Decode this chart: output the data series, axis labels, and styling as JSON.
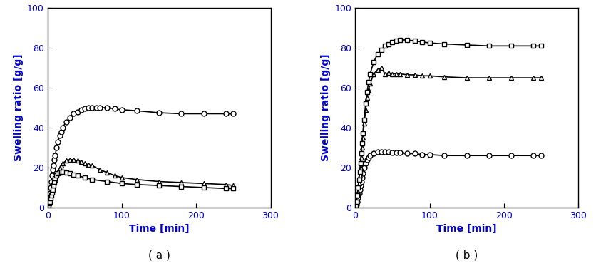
{
  "panel_a": {
    "circle": {
      "time": [
        1,
        2,
        3,
        4,
        5,
        6,
        7,
        8,
        9,
        10,
        12,
        14,
        16,
        18,
        20,
        25,
        30,
        35,
        40,
        45,
        50,
        55,
        60,
        65,
        70,
        80,
        90,
        100,
        120,
        150,
        180,
        210,
        240,
        250
      ],
      "values": [
        2,
        4,
        7,
        10,
        13,
        16,
        19,
        21,
        24,
        26,
        30,
        33,
        36,
        38,
        40,
        43,
        45,
        47,
        48,
        49,
        49.5,
        50,
        50,
        50,
        50,
        50,
        49.5,
        49,
        48.5,
        47.5,
        47,
        47,
        47,
        47
      ]
    },
    "triangle": {
      "time": [
        1,
        2,
        3,
        4,
        5,
        6,
        7,
        8,
        9,
        10,
        12,
        14,
        16,
        18,
        20,
        25,
        30,
        35,
        40,
        45,
        50,
        55,
        60,
        70,
        80,
        90,
        100,
        120,
        150,
        180,
        210,
        240,
        250
      ],
      "values": [
        1,
        2,
        3.5,
        5,
        6.5,
        8,
        9.5,
        11,
        12.5,
        14,
        16,
        18,
        19.5,
        21,
        22,
        23.5,
        24,
        24,
        23.5,
        23,
        22,
        21.5,
        21,
        19,
        17.5,
        16,
        15,
        14,
        13,
        12.5,
        12,
        11.5,
        11
      ]
    },
    "square": {
      "time": [
        1,
        2,
        3,
        4,
        5,
        6,
        7,
        8,
        9,
        10,
        12,
        14,
        16,
        18,
        20,
        25,
        30,
        35,
        40,
        50,
        60,
        80,
        100,
        120,
        150,
        180,
        210,
        240,
        250
      ],
      "values": [
        1,
        2,
        3,
        4.5,
        6,
        7.5,
        9,
        11,
        13,
        14.5,
        16,
        17,
        17.5,
        18,
        18,
        17.5,
        17,
        16.5,
        16,
        15,
        14,
        13,
        12,
        11.5,
        11,
        10.5,
        10,
        9.5,
        9.5
      ]
    }
  },
  "panel_b": {
    "square": {
      "time": [
        1,
        2,
        3,
        4,
        5,
        6,
        7,
        8,
        9,
        10,
        12,
        14,
        16,
        18,
        20,
        25,
        30,
        35,
        40,
        45,
        50,
        55,
        60,
        70,
        80,
        90,
        100,
        120,
        150,
        180,
        210,
        240,
        250
      ],
      "values": [
        1,
        3,
        6,
        10,
        14,
        18,
        22,
        27,
        32,
        37,
        44,
        52,
        58,
        63,
        67,
        73,
        77,
        79,
        81,
        82,
        83,
        83.5,
        84,
        84,
        83.5,
        83,
        82.5,
        82,
        81.5,
        81,
        81,
        81,
        81
      ]
    },
    "triangle": {
      "time": [
        1,
        2,
        3,
        4,
        5,
        6,
        7,
        8,
        9,
        10,
        12,
        14,
        16,
        18,
        20,
        25,
        30,
        35,
        40,
        45,
        50,
        55,
        60,
        70,
        80,
        90,
        100,
        120,
        150,
        180,
        210,
        240,
        250
      ],
      "values": [
        0.5,
        2,
        4.5,
        8,
        12,
        16,
        20,
        25,
        30,
        35,
        42,
        49,
        55,
        59,
        62,
        67,
        69,
        70,
        67,
        67.5,
        67,
        67,
        67,
        66.5,
        66.5,
        66,
        66,
        65.5,
        65,
        65,
        65,
        65,
        65
      ]
    },
    "circle": {
      "time": [
        1,
        2,
        3,
        4,
        5,
        6,
        7,
        8,
        9,
        10,
        12,
        14,
        16,
        18,
        20,
        25,
        30,
        35,
        40,
        45,
        50,
        55,
        60,
        70,
        80,
        90,
        100,
        120,
        150,
        180,
        210,
        240,
        250
      ],
      "values": [
        0.5,
        1.5,
        3,
        5,
        7,
        9,
        11,
        13,
        15,
        17,
        20,
        22,
        24,
        25,
        26,
        27,
        28,
        28,
        28,
        28,
        27.5,
        27.5,
        27.5,
        27,
        27,
        26.5,
        26.5,
        26,
        26,
        26,
        26,
        26,
        26
      ]
    }
  },
  "ylim": [
    0,
    100
  ],
  "xlim": [
    0,
    300
  ],
  "xlabel": "Time [min]",
  "ylabel": "Swelling ratio [g/g]",
  "label_a": "( a )",
  "label_b": "( b )",
  "line_color": "#000000",
  "marker_color": "#000000",
  "marker_size": 5,
  "linewidth": 1.2,
  "axis_label_color": "#0000cc",
  "tick_label_color": "#0000cc",
  "spine_color": "#000000",
  "tick_color": "#000000"
}
